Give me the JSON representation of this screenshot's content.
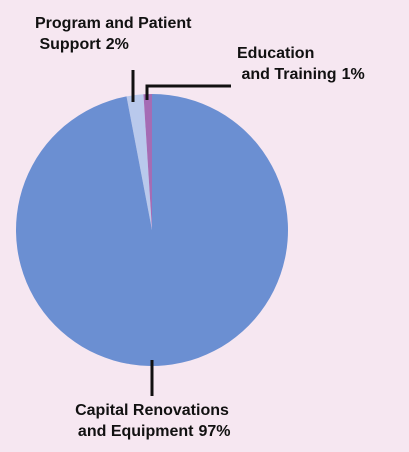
{
  "chart_data": {
    "type": "pie",
    "categories": [
      "Program and Patient Support",
      "Education and Training",
      "Capital Renovations and Equipment"
    ],
    "values": [
      2,
      1,
      97
    ],
    "value_labels": [
      "2%",
      "1%",
      "97%"
    ],
    "colors": [
      "#b9c9ec",
      "#a56cb4",
      "#6b8fd2"
    ]
  }
}
